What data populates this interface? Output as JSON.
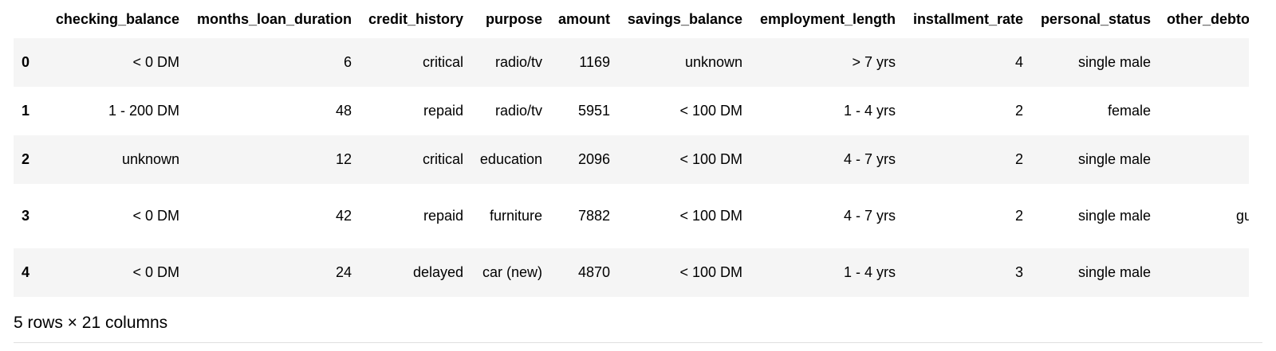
{
  "table": {
    "index_header": "",
    "columns": [
      "checking_balance",
      "months_loan_duration",
      "credit_history",
      "purpose",
      "amount",
      "savings_balance",
      "employment_length",
      "installment_rate",
      "personal_status",
      "other_debtors"
    ],
    "rows": [
      {
        "index": "0",
        "cells": [
          "< 0 DM",
          "6",
          "critical",
          "radio/tv",
          "1169",
          "unknown",
          "> 7 yrs",
          "4",
          "single male",
          ""
        ]
      },
      {
        "index": "1",
        "cells": [
          "1 - 200 DM",
          "48",
          "repaid",
          "radio/tv",
          "5951",
          "< 100 DM",
          "1 - 4 yrs",
          "2",
          "female",
          ""
        ]
      },
      {
        "index": "2",
        "cells": [
          "unknown",
          "12",
          "critical",
          "education",
          "2096",
          "< 100 DM",
          "4 - 7 yrs",
          "2",
          "single male",
          ""
        ]
      },
      {
        "index": "3",
        "cells": [
          "< 0 DM",
          "42",
          "repaid",
          "furniture",
          "7882",
          "< 100 DM",
          "4 - 7 yrs",
          "2",
          "single male",
          "guarantor"
        ]
      },
      {
        "index": "4",
        "cells": [
          "< 0 DM",
          "24",
          "delayed",
          "car (new)",
          "4870",
          "< 100 DM",
          "1 - 4 yrs",
          "3",
          "single male",
          ""
        ]
      }
    ],
    "shape_label": "5 rows × 21 columns"
  },
  "colors": {
    "stripe": "#f5f5f5",
    "background": "#ffffff",
    "text": "#000000"
  }
}
